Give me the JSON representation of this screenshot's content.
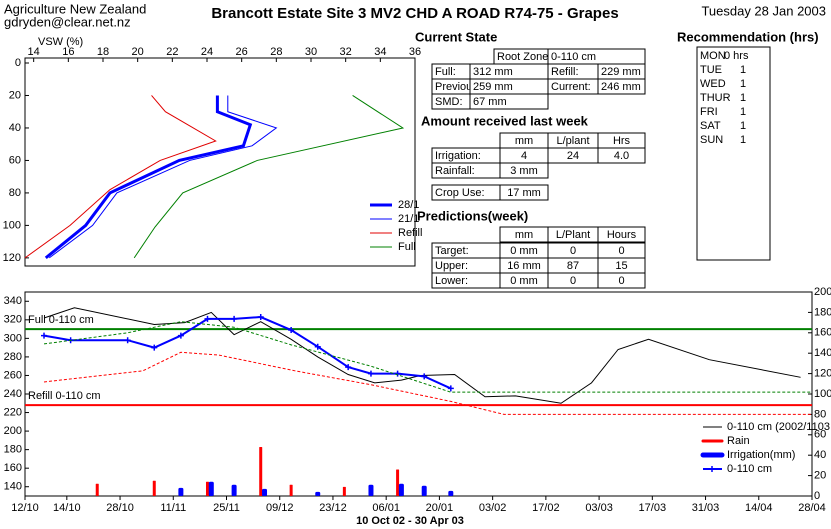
{
  "header": {
    "org": "Agriculture New Zealand",
    "email": "gdryden@clear.net.nz",
    "title": "Brancott Estate Site 3 MV2 CHD A ROAD R74-75  - Grapes",
    "date": "Tuesday 28 Jan 2003"
  },
  "current_state": {
    "heading": "Current State",
    "root_zone": [
      "Root Zone:",
      "0-110 cm"
    ],
    "rows": [
      [
        "Full:",
        "312 mm",
        "Refill:",
        "229 mm"
      ],
      [
        "Previous:",
        "259 mm",
        "Current:",
        "246 mm"
      ],
      [
        "SMD:",
        "67 mm"
      ]
    ]
  },
  "last_week": {
    "heading": "Amount received last week",
    "columns": [
      "mm",
      "L/plant",
      "Hrs"
    ],
    "rows": [
      [
        "Irrigation:",
        "4",
        "24",
        "4.0"
      ],
      [
        "Rainfall:",
        "3 mm"
      ],
      [
        "Crop Use:",
        "17 mm"
      ]
    ]
  },
  "predictions": {
    "heading": "Predictions(week)",
    "columns": [
      "mm",
      "L/Plant",
      "Hours"
    ],
    "rows": [
      [
        "Target:",
        "0 mm",
        "0",
        "0"
      ],
      [
        "Upper:",
        "16 mm",
        "87",
        "15"
      ],
      [
        "Lower:",
        "0 mm",
        "0",
        "0"
      ]
    ]
  },
  "recommendation": {
    "heading": "Recommendation (hrs)",
    "rows": [
      [
        "MON",
        "0 hrs"
      ],
      [
        "TUE",
        "1"
      ],
      [
        "WED",
        "1"
      ],
      [
        "THUR",
        "1"
      ],
      [
        "FRI",
        "1"
      ],
      [
        "SAT",
        "1"
      ],
      [
        "SUN",
        "1"
      ]
    ]
  },
  "chart_data": [
    {
      "type": "profile",
      "x_label": "VSW (%)",
      "xlim": [
        13.5,
        36
      ],
      "xticks": [
        14,
        16,
        18,
        20,
        22,
        24,
        26,
        28,
        30,
        32,
        34,
        36
      ],
      "ylim": [
        0,
        125
      ],
      "yticks": [
        0,
        20,
        40,
        60,
        80,
        100,
        120
      ],
      "y_inverted": true,
      "legend": "lower right",
      "series": [
        {
          "name": "28/1",
          "color": "#0000ff",
          "width": 3,
          "x": [
            24.6,
            24.6,
            26.5,
            26.1,
            22.4,
            18.4,
            17,
            14.7
          ],
          "y": [
            20,
            30,
            38,
            51,
            60,
            80,
            100,
            120
          ]
        },
        {
          "name": "21/1",
          "color": "#0000ff",
          "width": 1,
          "x": [
            25.2,
            25.2,
            28,
            26.6,
            23,
            18.8,
            17.4,
            14.9
          ],
          "y": [
            20,
            30,
            40,
            51,
            60,
            80,
            100,
            120
          ]
        },
        {
          "name": "Refill",
          "color": "#e00000",
          "width": 1,
          "x": [
            20.8,
            21.6,
            24.5,
            21.3,
            18.4,
            16.1,
            13.5
          ],
          "y": [
            20,
            30,
            48,
            60,
            78,
            100,
            120
          ]
        },
        {
          "name": "Full",
          "color": "#008000",
          "width": 1,
          "x": [
            32.4,
            35.3,
            26.9,
            22.6,
            21,
            19.8
          ],
          "y": [
            20,
            40,
            60,
            80,
            101,
            120
          ]
        }
      ]
    },
    {
      "type": "timeseries",
      "x_label": "10 Oct 02 - 30 Apr 03",
      "xlim": [
        -11,
        196
      ],
      "xticks": [
        {
          "value": -11,
          "label": "12/10"
        },
        {
          "value": 0,
          "label": "14/10"
        },
        {
          "value": 14,
          "label": "28/10"
        },
        {
          "value": 28,
          "label": "11/11"
        },
        {
          "value": 42,
          "label": "25/11"
        },
        {
          "value": 56,
          "label": "09/12"
        },
        {
          "value": 70,
          "label": "23/12"
        },
        {
          "value": 84,
          "label": "06/01"
        },
        {
          "value": 98,
          "label": "20/01"
        },
        {
          "value": 112,
          "label": "03/02"
        },
        {
          "value": 126,
          "label": "17/02"
        },
        {
          "value": 140,
          "label": "03/03"
        },
        {
          "value": 154,
          "label": "17/03"
        },
        {
          "value": 168,
          "label": "31/03"
        },
        {
          "value": 182,
          "label": "14/04"
        },
        {
          "value": 196,
          "label": "28/04"
        }
      ],
      "ylim": [
        130,
        350
      ],
      "yticks": [
        140,
        160,
        180,
        200,
        220,
        240,
        260,
        280,
        300,
        320,
        340
      ],
      "y2lim": [
        0,
        200
      ],
      "y2ticks": [
        0,
        20,
        40,
        60,
        80,
        100,
        120,
        140,
        160,
        180,
        200
      ],
      "legend": "lower right",
      "hlines": [
        {
          "label": "Full 0-110 cm",
          "value": 310,
          "color": "#008000"
        },
        {
          "label": "Refill 0-110 cm",
          "value": 228,
          "color": "#ff0000"
        }
      ],
      "series": [
        {
          "name": "0-110 cm (2002/1103",
          "type": "line",
          "color": "#000000",
          "width": 1,
          "x": [
            -6,
            2,
            23,
            31,
            38,
            44,
            51,
            59,
            66,
            74,
            81,
            88,
            93,
            102,
            110,
            118,
            130,
            138,
            145,
            153,
            169,
            193
          ],
          "values": [
            322,
            333,
            315,
            317,
            328,
            304,
            318,
            299,
            280,
            261,
            252,
            255,
            260,
            261,
            237,
            238,
            230,
            252,
            288,
            299,
            277,
            258
          ]
        },
        {
          "name": "Rain",
          "type": "bar",
          "axis": "y2",
          "color": "#ff0000",
          "width": 3,
          "x": [
            8,
            23,
            37,
            51,
            59,
            73,
            87
          ],
          "values": [
            12,
            15,
            14,
            48,
            11,
            9,
            26
          ]
        },
        {
          "name": "Irrigation(mm)",
          "type": "bar",
          "axis": "y2",
          "color": "#0000ff",
          "width": 5,
          "x": [
            30,
            38,
            44,
            52,
            66,
            80,
            88,
            94,
            101
          ],
          "values": [
            8,
            14,
            11,
            7,
            4,
            11,
            12,
            10,
            5
          ]
        },
        {
          "name": "0-110 cm",
          "type": "line",
          "color": "#0000ff",
          "width": 2,
          "marker": "plus",
          "x": [
            -6,
            1,
            16,
            23,
            30,
            37,
            44,
            51,
            59,
            66,
            74,
            80,
            87,
            94,
            101
          ],
          "values": [
            303,
            298,
            298,
            290,
            303,
            321,
            321,
            323,
            309,
            291,
            269,
            262,
            262,
            259,
            246
          ]
        },
        {
          "type": "line",
          "color": "#008000",
          "width": 1,
          "dash": true,
          "x": [
            -6,
            16,
            30,
            44,
            59,
            80,
            101,
            196
          ],
          "values": [
            294,
            306,
            318,
            312,
            293,
            270,
            242,
            242
          ]
        },
        {
          "type": "line",
          "color": "#ff0000",
          "width": 1,
          "dash": true,
          "x": [
            -6,
            20,
            30,
            40,
            60,
            80,
            101,
            115,
            196
          ],
          "values": [
            253,
            265,
            285,
            282,
            265,
            250,
            232,
            218,
            218
          ]
        }
      ]
    }
  ]
}
